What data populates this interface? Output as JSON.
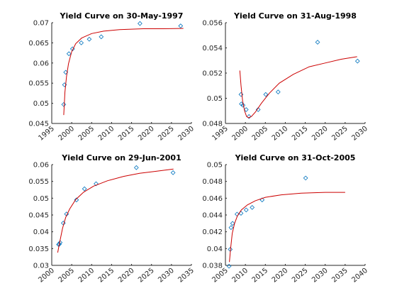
{
  "chart_data": [
    {
      "type": "scatter",
      "title": "Yield Curve on 30-May-1997",
      "xlim": [
        1995,
        2030
      ],
      "ylim": [
        0.045,
        0.07
      ],
      "xticks": [
        1995,
        2000,
        2005,
        2010,
        2015,
        2020,
        2025,
        2030
      ],
      "xtick_labels": [
        "1995",
        "2000",
        "2005",
        "2010",
        "2015",
        "2020",
        "2025",
        "2030"
      ],
      "yticks": [
        0.045,
        0.05,
        0.055,
        0.06,
        0.065,
        0.07
      ],
      "ytick_labels": [
        "0.045",
        "0.05",
        "0.055",
        "0.06",
        "0.065",
        "0.07"
      ],
      "series": [
        {
          "kind": "markers",
          "marker": "diamond",
          "color": "#0072bd",
          "points": [
            [
              1998.0,
              0.0497
            ],
            [
              1998.2,
              0.0546
            ],
            [
              1998.5,
              0.0577
            ],
            [
              1999.3,
              0.0623
            ],
            [
              2000.2,
              0.0635
            ],
            [
              2002.4,
              0.065
            ],
            [
              2004.4,
              0.0659
            ],
            [
              2007.4,
              0.0665
            ],
            [
              2017.1,
              0.0698
            ],
            [
              2027.3,
              0.0692
            ]
          ]
        },
        {
          "kind": "line",
          "color": "#cc0000",
          "points": [
            [
              1998.0,
              0.0471
            ],
            [
              1998.3,
              0.0528
            ],
            [
              1998.7,
              0.0566
            ],
            [
              1999.2,
              0.0598
            ],
            [
              2000.0,
              0.0628
            ],
            [
              2001.0,
              0.0648
            ],
            [
              2002.5,
              0.0662
            ],
            [
              2005.0,
              0.0673
            ],
            [
              2008.0,
              0.0679
            ],
            [
              2012.0,
              0.0683
            ],
            [
              2018.0,
              0.0685
            ],
            [
              2023.0,
              0.0685
            ],
            [
              2028.0,
              0.0686
            ]
          ]
        }
      ]
    },
    {
      "type": "scatter",
      "title": "Yield Curve on 31-Aug-1998",
      "xlim": [
        1995,
        2030
      ],
      "ylim": [
        0.048,
        0.056
      ],
      "xticks": [
        1995,
        2000,
        2005,
        2010,
        2015,
        2020,
        2025,
        2030
      ],
      "xtick_labels": [
        "1995",
        "2000",
        "2005",
        "2010",
        "2015",
        "2020",
        "2025",
        "2030"
      ],
      "yticks": [
        0.048,
        0.05,
        0.052,
        0.054,
        0.056
      ],
      "ytick_labels": [
        "0.048",
        "0.05",
        "0.052",
        "0.054",
        "0.056"
      ],
      "series": [
        {
          "kind": "markers",
          "marker": "diamond",
          "color": "#0072bd",
          "points": [
            [
              1998.9,
              0.0503
            ],
            [
              1999.0,
              0.04955
            ],
            [
              1999.4,
              0.04945
            ],
            [
              2000.2,
              0.0491
            ],
            [
              2000.9,
              0.04855
            ],
            [
              2003.2,
              0.0491
            ],
            [
              2005.1,
              0.0503
            ],
            [
              2008.2,
              0.0505
            ],
            [
              2018.1,
              0.05445
            ],
            [
              2028.1,
              0.05295
            ]
          ]
        },
        {
          "kind": "line",
          "color": "#cc0000",
          "points": [
            [
              1998.6,
              0.0522
            ],
            [
              1998.9,
              0.051
            ],
            [
              1999.3,
              0.0498
            ],
            [
              1999.8,
              0.049
            ],
            [
              2000.3,
              0.04855
            ],
            [
              2000.8,
              0.04845
            ],
            [
              2001.5,
              0.04855
            ],
            [
              2002.5,
              0.0489
            ],
            [
              2004.0,
              0.0496
            ],
            [
              2006.0,
              0.0504
            ],
            [
              2008.5,
              0.0512
            ],
            [
              2012.0,
              0.0519
            ],
            [
              2016.0,
              0.0525
            ],
            [
              2020.0,
              0.0528
            ],
            [
              2024.0,
              0.0531
            ],
            [
              2028.0,
              0.0533
            ]
          ]
        }
      ]
    },
    {
      "type": "scatter",
      "title": "Yield Curve on 29-Jun-2001",
      "xlim": [
        2000,
        2035
      ],
      "ylim": [
        0.03,
        0.06
      ],
      "xticks": [
        2000,
        2005,
        2010,
        2015,
        2020,
        2025,
        2030,
        2035
      ],
      "xtick_labels": [
        "2000",
        "2005",
        "2010",
        "2015",
        "2020",
        "2025",
        "2030",
        "2035"
      ],
      "yticks": [
        0.03,
        0.035,
        0.04,
        0.045,
        0.05,
        0.055,
        0.06
      ],
      "ytick_labels": [
        "0.03",
        "0.035",
        "0.04",
        "0.045",
        "0.05",
        "0.055",
        "0.06"
      ],
      "series": [
        {
          "kind": "markers",
          "marker": "diamond",
          "color": "#0072bd",
          "points": [
            [
              2001.7,
              0.0362
            ],
            [
              2001.9,
              0.0363
            ],
            [
              2002.1,
              0.0368
            ],
            [
              2002.9,
              0.0426
            ],
            [
              2003.7,
              0.0453
            ],
            [
              2006.2,
              0.0495
            ],
            [
              2008.2,
              0.0528
            ],
            [
              2011.1,
              0.0543
            ],
            [
              2021.2,
              0.0591
            ],
            [
              2030.4,
              0.0576
            ]
          ]
        },
        {
          "kind": "line",
          "color": "#cc0000",
          "points": [
            [
              2001.5,
              0.0338
            ],
            [
              2002.0,
              0.037
            ],
            [
              2002.7,
              0.041
            ],
            [
              2003.5,
              0.0443
            ],
            [
              2004.5,
              0.0468
            ],
            [
              2006.0,
              0.0496
            ],
            [
              2008.0,
              0.0518
            ],
            [
              2010.5,
              0.0536
            ],
            [
              2014.0,
              0.0552
            ],
            [
              2018.0,
              0.0565
            ],
            [
              2022.0,
              0.0574
            ],
            [
              2026.0,
              0.058
            ],
            [
              2030.5,
              0.0587
            ]
          ]
        }
      ]
    },
    {
      "type": "scatter",
      "title": "Yield Curve on 31-Oct-2005",
      "xlim": [
        2005,
        2040
      ],
      "ylim": [
        0.038,
        0.05
      ],
      "xticks": [
        2005,
        2010,
        2015,
        2020,
        2025,
        2030,
        2035,
        2040
      ],
      "xtick_labels": [
        "2005",
        "2010",
        "2015",
        "2020",
        "2025",
        "2030",
        "2035",
        "2040"
      ],
      "yticks": [
        0.038,
        0.04,
        0.042,
        0.044,
        0.046,
        0.048,
        0.05
      ],
      "ytick_labels": [
        "0.038",
        "0.04",
        "0.042",
        "0.044",
        "0.046",
        "0.048",
        "0.05"
      ],
      "series": [
        {
          "kind": "markers",
          "marker": "diamond",
          "color": "#0072bd",
          "points": [
            [
              2005.9,
              0.0379
            ],
            [
              2006.2,
              0.0399
            ],
            [
              2006.4,
              0.0425
            ],
            [
              2006.8,
              0.043
            ],
            [
              2007.9,
              0.0441
            ],
            [
              2008.9,
              0.0442
            ],
            [
              2010.2,
              0.0446
            ],
            [
              2011.7,
              0.0449
            ],
            [
              2014.2,
              0.0458
            ],
            [
              2025.1,
              0.0484
            ]
          ]
        },
        {
          "kind": "line",
          "color": "#cc0000",
          "points": [
            [
              2006.0,
              0.0384
            ],
            [
              2006.3,
              0.04
            ],
            [
              2006.7,
              0.0418
            ],
            [
              2007.3,
              0.043
            ],
            [
              2008.0,
              0.0439
            ],
            [
              2009.0,
              0.0446
            ],
            [
              2010.5,
              0.0452
            ],
            [
              2012.5,
              0.0457
            ],
            [
              2015.0,
              0.0461
            ],
            [
              2019.0,
              0.0464
            ],
            [
              2024.0,
              0.0466
            ],
            [
              2030.0,
              0.0467
            ],
            [
              2035.0,
              0.0467
            ]
          ]
        }
      ]
    }
  ]
}
